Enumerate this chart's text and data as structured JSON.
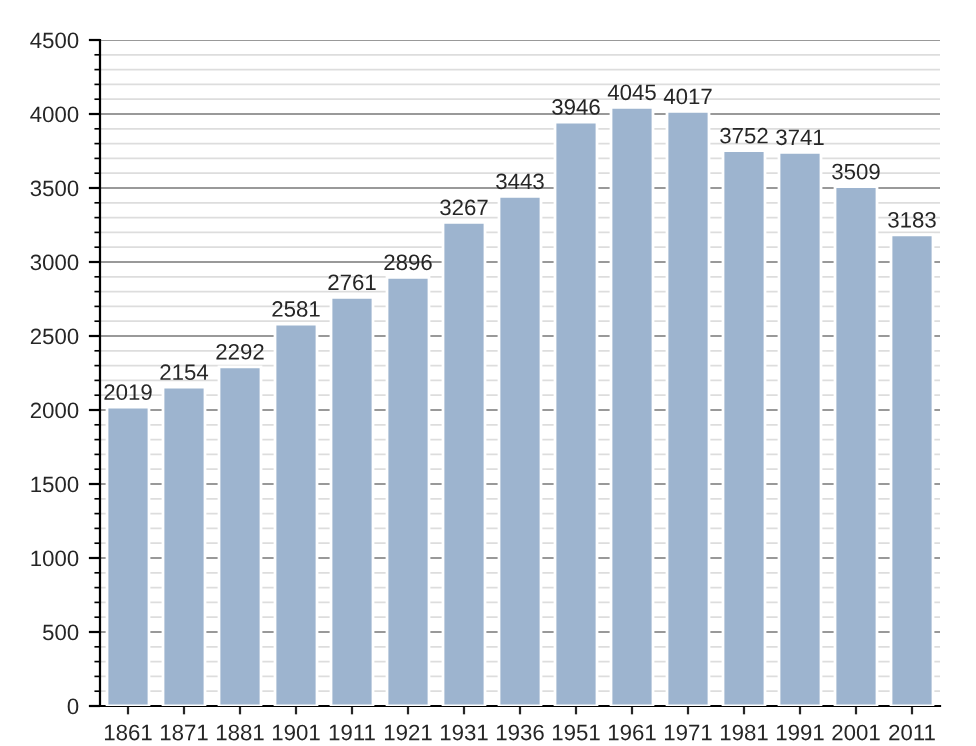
{
  "chart_data": {
    "type": "bar",
    "categories": [
      "1861",
      "1871",
      "1881",
      "1901",
      "1911",
      "1921",
      "1931",
      "1936",
      "1951",
      "1961",
      "1971",
      "1981",
      "1991",
      "2001",
      "2011"
    ],
    "values": [
      2019,
      2154,
      2292,
      2581,
      2761,
      2896,
      3267,
      3443,
      3946,
      4045,
      4017,
      3752,
      3741,
      3509,
      3183
    ],
    "color": "#9db4cf",
    "ylim": [
      0,
      4500
    ],
    "yticks": [
      0,
      500,
      1000,
      1500,
      2000,
      2500,
      3000,
      3500,
      4000,
      4500
    ],
    "grid": "y",
    "data_labels": true
  }
}
